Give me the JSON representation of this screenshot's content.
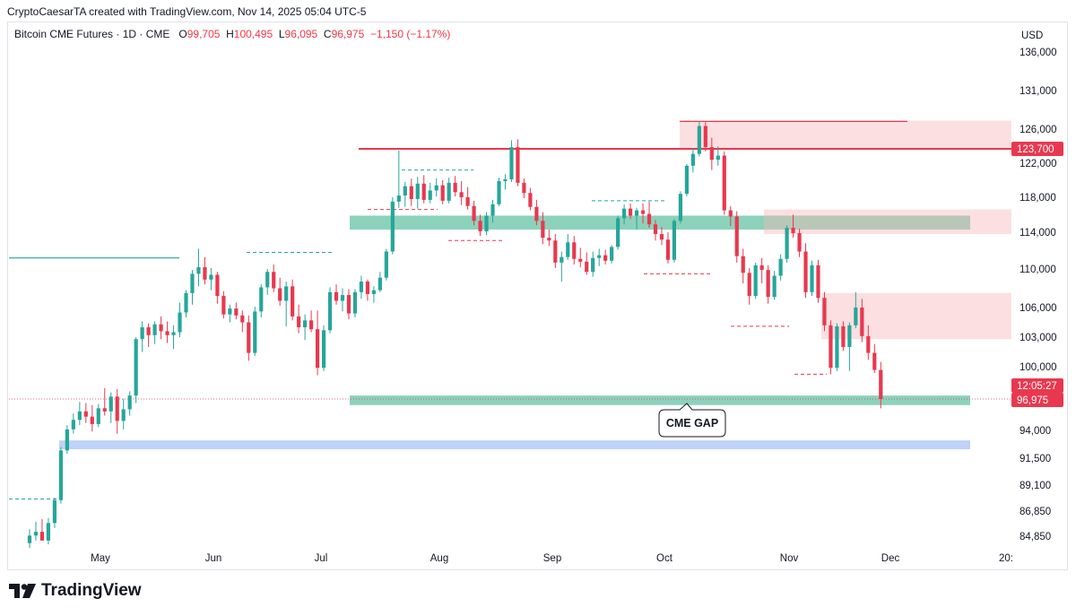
{
  "header": {
    "attribution": "CryptoCaesarTA created with TradingView.com, Nov 14, 2025 05:04 UTC-5"
  },
  "symbol": {
    "name": "Bitcoin CME Futures · 1D · CME",
    "o_label": "O",
    "o_value": "99,705",
    "h_label": "H",
    "h_value": "100,495",
    "l_label": "L",
    "l_value": "96,095",
    "c_label": "C",
    "c_value": "96,975",
    "change": "−1,150 (−1.17%)"
  },
  "brand": {
    "name": "TradingView"
  },
  "colors": {
    "up": "#26a69a",
    "down": "#e8384f",
    "resistance": "#e8384f",
    "zone_green": "#7fcdb4",
    "zone_red": "#fcd9db",
    "zone_blue": "#b8cdf7",
    "grid_line": "#e0e3eb"
  },
  "chart_data": {
    "type": "candlestick",
    "title": "Bitcoin CME Futures · 1D · CME",
    "currency": "USD",
    "y_axis_ticks": [
      "136,000",
      "131,000",
      "126,000",
      "122,000",
      "118,000",
      "114,000",
      "110,000",
      "106,000",
      "103,000",
      "100,000",
      "96,975",
      "94,000",
      "91,500",
      "89,100",
      "86,850",
      "84,850"
    ],
    "x_axis_ticks": [
      "May",
      "Jun",
      "Jul",
      "Aug",
      "Sep",
      "Oct",
      "Nov",
      "Dec",
      "20:"
    ],
    "price_labels": {
      "resistance": "123,700",
      "countdown": "12:05:27",
      "last_price": "96,975"
    },
    "annotation": "CME GAP",
    "levels": {
      "resistance": 123700,
      "last": 96975
    },
    "zones": [
      {
        "kind": "support",
        "color": "green",
        "from": 96400,
        "to": 97300
      },
      {
        "kind": "support",
        "color": "blue",
        "from": 92300,
        "to": 93100
      },
      {
        "kind": "support",
        "color": "green",
        "from": 114300,
        "to": 115900
      },
      {
        "kind": "resistance",
        "color": "red",
        "from": 123700,
        "to": 127100
      },
      {
        "kind": "resistance",
        "color": "red",
        "from": 113800,
        "to": 116600
      },
      {
        "kind": "resistance",
        "color": "red",
        "from": 102800,
        "to": 107500
      }
    ],
    "candles": [
      {
        "o": 84300,
        "h": 85400,
        "l": 83900,
        "c": 84900
      },
      {
        "o": 84900,
        "h": 86000,
        "l": 84500,
        "c": 85200
      },
      {
        "o": 85200,
        "h": 86200,
        "l": 84700,
        "c": 84500
      },
      {
        "o": 84500,
        "h": 86300,
        "l": 84200,
        "c": 85900
      },
      {
        "o": 85900,
        "h": 88000,
        "l": 85500,
        "c": 87800
      },
      {
        "o": 87800,
        "h": 92500,
        "l": 87500,
        "c": 92200
      },
      {
        "o": 92200,
        "h": 94500,
        "l": 91900,
        "c": 94100
      },
      {
        "o": 94100,
        "h": 95600,
        "l": 93700,
        "c": 95000
      },
      {
        "o": 95000,
        "h": 96700,
        "l": 94500,
        "c": 95800
      },
      {
        "o": 95800,
        "h": 96600,
        "l": 94700,
        "c": 95300
      },
      {
        "o": 95300,
        "h": 96400,
        "l": 93900,
        "c": 94600
      },
      {
        "o": 94600,
        "h": 96500,
        "l": 94300,
        "c": 96100
      },
      {
        "o": 96100,
        "h": 98000,
        "l": 95400,
        "c": 95800
      },
      {
        "o": 95800,
        "h": 97600,
        "l": 94700,
        "c": 97200
      },
      {
        "o": 97200,
        "h": 97900,
        "l": 93700,
        "c": 94900
      },
      {
        "o": 94900,
        "h": 97000,
        "l": 94100,
        "c": 96000
      },
      {
        "o": 96000,
        "h": 97700,
        "l": 95400,
        "c": 97300
      },
      {
        "o": 97300,
        "h": 103000,
        "l": 96600,
        "c": 102800
      },
      {
        "o": 102800,
        "h": 104600,
        "l": 101500,
        "c": 104000
      },
      {
        "o": 104000,
        "h": 104400,
        "l": 102000,
        "c": 103200
      },
      {
        "o": 103200,
        "h": 104600,
        "l": 102300,
        "c": 104300
      },
      {
        "o": 104300,
        "h": 105100,
        "l": 102800,
        "c": 103600
      },
      {
        "o": 103600,
        "h": 104600,
        "l": 102400,
        "c": 103200
      },
      {
        "o": 103200,
        "h": 104200,
        "l": 101800,
        "c": 103500
      },
      {
        "o": 103500,
        "h": 106500,
        "l": 103000,
        "c": 105500
      },
      {
        "o": 105500,
        "h": 107800,
        "l": 105000,
        "c": 107500
      },
      {
        "o": 107500,
        "h": 109900,
        "l": 106300,
        "c": 109500
      },
      {
        "o": 109500,
        "h": 112200,
        "l": 108200,
        "c": 110200
      },
      {
        "o": 110200,
        "h": 111300,
        "l": 108400,
        "c": 108900
      },
      {
        "o": 108900,
        "h": 110100,
        "l": 107800,
        "c": 109400
      },
      {
        "o": 109400,
        "h": 109700,
        "l": 106400,
        "c": 107200
      },
      {
        "o": 107200,
        "h": 107700,
        "l": 104900,
        "c": 105300
      },
      {
        "o": 105300,
        "h": 106300,
        "l": 104500,
        "c": 105900
      },
      {
        "o": 105900,
        "h": 106500,
        "l": 104800,
        "c": 105200
      },
      {
        "o": 105200,
        "h": 105700,
        "l": 103500,
        "c": 104500
      },
      {
        "o": 104500,
        "h": 105200,
        "l": 100600,
        "c": 101400
      },
      {
        "o": 101400,
        "h": 106100,
        "l": 101100,
        "c": 105600
      },
      {
        "o": 105600,
        "h": 108400,
        "l": 105000,
        "c": 108100
      },
      {
        "o": 108100,
        "h": 110000,
        "l": 107300,
        "c": 109700
      },
      {
        "o": 109700,
        "h": 110500,
        "l": 107600,
        "c": 108000
      },
      {
        "o": 108000,
        "h": 109100,
        "l": 106200,
        "c": 106700
      },
      {
        "o": 106700,
        "h": 108700,
        "l": 104100,
        "c": 108200
      },
      {
        "o": 108200,
        "h": 108900,
        "l": 104700,
        "c": 105100
      },
      {
        "o": 105100,
        "h": 106300,
        "l": 103400,
        "c": 104000
      },
      {
        "o": 104000,
        "h": 105300,
        "l": 102700,
        "c": 104700
      },
      {
        "o": 104700,
        "h": 105700,
        "l": 103500,
        "c": 103800
      },
      {
        "o": 103800,
        "h": 105700,
        "l": 99200,
        "c": 99900
      },
      {
        "o": 99900,
        "h": 104200,
        "l": 99600,
        "c": 103700
      },
      {
        "o": 103700,
        "h": 108100,
        "l": 103400,
        "c": 107600
      },
      {
        "o": 107600,
        "h": 108400,
        "l": 106300,
        "c": 106700
      },
      {
        "o": 106700,
        "h": 108000,
        "l": 105600,
        "c": 107300
      },
      {
        "o": 107300,
        "h": 107900,
        "l": 104800,
        "c": 105400
      },
      {
        "o": 105400,
        "h": 107900,
        "l": 105000,
        "c": 107600
      },
      {
        "o": 107600,
        "h": 109300,
        "l": 106900,
        "c": 108700
      },
      {
        "o": 108700,
        "h": 108900,
        "l": 106700,
        "c": 107400
      },
      {
        "o": 107400,
        "h": 108200,
        "l": 106500,
        "c": 107800
      },
      {
        "o": 107800,
        "h": 109700,
        "l": 107600,
        "c": 109100
      },
      {
        "o": 109100,
        "h": 112200,
        "l": 108800,
        "c": 111900
      },
      {
        "o": 111900,
        "h": 118000,
        "l": 111600,
        "c": 117500
      },
      {
        "o": 117500,
        "h": 123500,
        "l": 116800,
        "c": 118200
      },
      {
        "o": 118200,
        "h": 119800,
        "l": 116900,
        "c": 119300
      },
      {
        "o": 119300,
        "h": 120200,
        "l": 117000,
        "c": 117800
      },
      {
        "o": 117800,
        "h": 120400,
        "l": 116700,
        "c": 119600
      },
      {
        "o": 119600,
        "h": 120600,
        "l": 117300,
        "c": 117700
      },
      {
        "o": 117700,
        "h": 119700,
        "l": 117300,
        "c": 118800
      },
      {
        "o": 118800,
        "h": 120200,
        "l": 118100,
        "c": 119400
      },
      {
        "o": 119400,
        "h": 120000,
        "l": 117200,
        "c": 117600
      },
      {
        "o": 117600,
        "h": 120300,
        "l": 117300,
        "c": 119700
      },
      {
        "o": 119700,
        "h": 120500,
        "l": 118100,
        "c": 118600
      },
      {
        "o": 118600,
        "h": 119900,
        "l": 117100,
        "c": 118000
      },
      {
        "o": 118000,
        "h": 119200,
        "l": 116600,
        "c": 117000
      },
      {
        "o": 117000,
        "h": 117600,
        "l": 114800,
        "c": 115300
      },
      {
        "o": 115300,
        "h": 116000,
        "l": 113600,
        "c": 114100
      },
      {
        "o": 114100,
        "h": 116300,
        "l": 113700,
        "c": 115900
      },
      {
        "o": 115900,
        "h": 117700,
        "l": 115100,
        "c": 117200
      },
      {
        "o": 117200,
        "h": 120300,
        "l": 117000,
        "c": 119900
      },
      {
        "o": 119900,
        "h": 120700,
        "l": 118900,
        "c": 120100
      },
      {
        "o": 120100,
        "h": 124700,
        "l": 119800,
        "c": 123900
      },
      {
        "o": 123900,
        "h": 124800,
        "l": 119300,
        "c": 119700
      },
      {
        "o": 119700,
        "h": 120200,
        "l": 117900,
        "c": 118500
      },
      {
        "o": 118500,
        "h": 119100,
        "l": 116500,
        "c": 116900
      },
      {
        "o": 116900,
        "h": 117700,
        "l": 114800,
        "c": 115300
      },
      {
        "o": 115300,
        "h": 116300,
        "l": 112700,
        "c": 113400
      },
      {
        "o": 113400,
        "h": 114300,
        "l": 112500,
        "c": 113100
      },
      {
        "o": 113100,
        "h": 113800,
        "l": 110100,
        "c": 110700
      },
      {
        "o": 110700,
        "h": 111900,
        "l": 108700,
        "c": 111300
      },
      {
        "o": 111300,
        "h": 113800,
        "l": 111000,
        "c": 112900
      },
      {
        "o": 112900,
        "h": 113600,
        "l": 110500,
        "c": 111100
      },
      {
        "o": 111100,
        "h": 112300,
        "l": 110200,
        "c": 110800
      },
      {
        "o": 110800,
        "h": 111800,
        "l": 109400,
        "c": 109700
      },
      {
        "o": 109700,
        "h": 111900,
        "l": 109200,
        "c": 111200
      },
      {
        "o": 111200,
        "h": 112200,
        "l": 110300,
        "c": 111500
      },
      {
        "o": 111500,
        "h": 112100,
        "l": 110500,
        "c": 110900
      },
      {
        "o": 110900,
        "h": 112600,
        "l": 110600,
        "c": 112400
      },
      {
        "o": 112400,
        "h": 115900,
        "l": 112100,
        "c": 115600
      },
      {
        "o": 115600,
        "h": 117200,
        "l": 114900,
        "c": 116700
      },
      {
        "o": 116700,
        "h": 117300,
        "l": 115500,
        "c": 115900
      },
      {
        "o": 115900,
        "h": 116800,
        "l": 114300,
        "c": 116500
      },
      {
        "o": 116500,
        "h": 117300,
        "l": 115000,
        "c": 116100
      },
      {
        "o": 116100,
        "h": 117500,
        "l": 114500,
        "c": 114900
      },
      {
        "o": 114900,
        "h": 115400,
        "l": 113100,
        "c": 113800
      },
      {
        "o": 113800,
        "h": 114600,
        "l": 112600,
        "c": 113200
      },
      {
        "o": 113200,
        "h": 114000,
        "l": 110600,
        "c": 111000
      },
      {
        "o": 111000,
        "h": 115500,
        "l": 110700,
        "c": 115300
      },
      {
        "o": 115300,
        "h": 118700,
        "l": 115000,
        "c": 118400
      },
      {
        "o": 118400,
        "h": 121900,
        "l": 118100,
        "c": 121700
      },
      {
        "o": 121700,
        "h": 123800,
        "l": 120900,
        "c": 123100
      },
      {
        "o": 123100,
        "h": 127000,
        "l": 122800,
        "c": 126400
      },
      {
        "o": 126400,
        "h": 126900,
        "l": 123400,
        "c": 123900
      },
      {
        "o": 123900,
        "h": 125000,
        "l": 121200,
        "c": 122400
      },
      {
        "o": 122400,
        "h": 124000,
        "l": 121700,
        "c": 122900
      },
      {
        "o": 122900,
        "h": 123400,
        "l": 116000,
        "c": 116500
      },
      {
        "o": 116500,
        "h": 117000,
        "l": 114700,
        "c": 115800
      },
      {
        "o": 115800,
        "h": 116400,
        "l": 110700,
        "c": 111400
      },
      {
        "o": 111400,
        "h": 112200,
        "l": 108500,
        "c": 109600
      },
      {
        "o": 109600,
        "h": 110100,
        "l": 106300,
        "c": 107200
      },
      {
        "o": 107200,
        "h": 110700,
        "l": 106900,
        "c": 110400
      },
      {
        "o": 110400,
        "h": 111200,
        "l": 108500,
        "c": 109900
      },
      {
        "o": 109900,
        "h": 110400,
        "l": 106400,
        "c": 107100
      },
      {
        "o": 107100,
        "h": 109800,
        "l": 106800,
        "c": 109300
      },
      {
        "o": 109300,
        "h": 111600,
        "l": 108800,
        "c": 111100
      },
      {
        "o": 111100,
        "h": 114800,
        "l": 110700,
        "c": 114500
      },
      {
        "o": 114500,
        "h": 116000,
        "l": 113400,
        "c": 113900
      },
      {
        "o": 113900,
        "h": 114400,
        "l": 111300,
        "c": 111900
      },
      {
        "o": 111900,
        "h": 112800,
        "l": 107000,
        "c": 107600
      },
      {
        "o": 107600,
        "h": 110900,
        "l": 107200,
        "c": 110400
      },
      {
        "o": 110400,
        "h": 111000,
        "l": 106500,
        "c": 107000
      },
      {
        "o": 107000,
        "h": 107600,
        "l": 103600,
        "c": 104200
      },
      {
        "o": 104200,
        "h": 104700,
        "l": 99300,
        "c": 99900
      },
      {
        "o": 99900,
        "h": 104400,
        "l": 99600,
        "c": 104100
      },
      {
        "o": 104100,
        "h": 104600,
        "l": 101600,
        "c": 102000
      },
      {
        "o": 102000,
        "h": 104500,
        "l": 99600,
        "c": 104200
      },
      {
        "o": 104200,
        "h": 107600,
        "l": 103900,
        "c": 106000
      },
      {
        "o": 106000,
        "h": 106900,
        "l": 102500,
        "c": 103100
      },
      {
        "o": 103100,
        "h": 104200,
        "l": 100700,
        "c": 101400
      },
      {
        "o": 101400,
        "h": 102300,
        "l": 99400,
        "c": 99700
      },
      {
        "o": 99705,
        "h": 100495,
        "l": 96095,
        "c": 96975
      }
    ]
  }
}
